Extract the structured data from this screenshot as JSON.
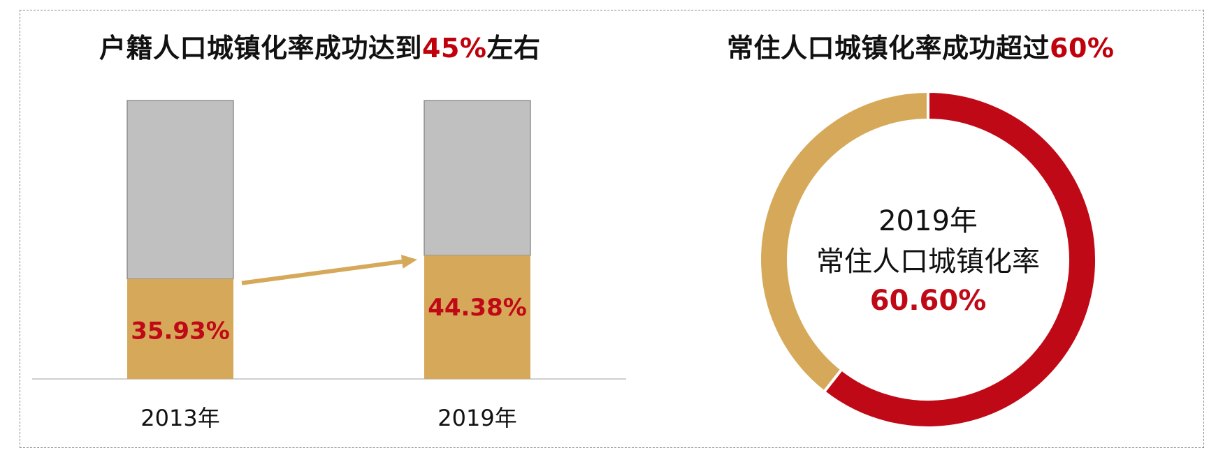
{
  "left_title": {
    "prefix": "户籍人口城镇化率成功达到",
    "highlight": "45%",
    "suffix": "左右"
  },
  "right_title": {
    "prefix": "常住人口城镇化率成功超过",
    "highlight": "60%"
  },
  "colors": {
    "gold": "#d6a95a",
    "grey": "#c0c0c0",
    "red": "#c00916",
    "dark": "#111111"
  },
  "chart_data": [
    {
      "type": "bar",
      "stacked": true,
      "categories": [
        "2013年",
        "2019年"
      ],
      "series": [
        {
          "values": [
            35.93,
            44.38
          ],
          "labels": [
            "35.93%",
            "44.38%"
          ],
          "color": "#d6a95a"
        },
        {
          "values": [
            64.07,
            55.62
          ],
          "color": "#c0c0c0"
        }
      ],
      "ylim": [
        0,
        100
      ],
      "annotation": "arrow from 2013 bar top to 2019 bar top"
    },
    {
      "type": "pie",
      "donut": true,
      "values": [
        60.6,
        39.4
      ],
      "colors": [
        "#c00916",
        "#d6a95a"
      ],
      "center_text": [
        "2019年",
        "常住人口城镇化率",
        "60.60%"
      ]
    }
  ]
}
